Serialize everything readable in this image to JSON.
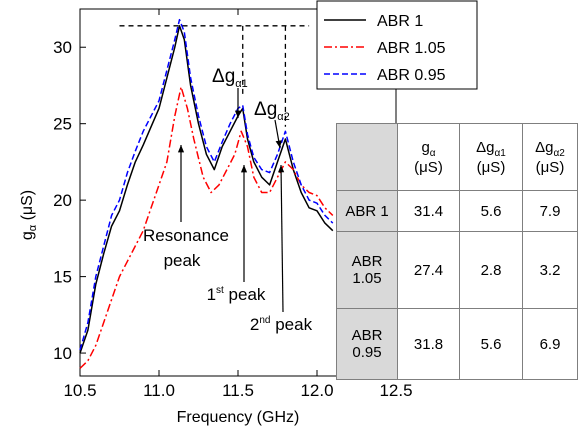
{
  "chart_data": {
    "type": "line",
    "xlabel": "Frequency (GHz)",
    "ylabel_main": "g",
    "ylabel_sub": "α",
    "ylabel_unit": " (μS)",
    "xlim": [
      10.5,
      12.5
    ],
    "ylim": [
      8.5,
      32.5
    ],
    "xticks": [
      "10.5",
      "11.0",
      "11.5",
      "12.0",
      "12.5"
    ],
    "xtick_values": [
      10.5,
      11.0,
      11.5,
      12.0,
      12.5
    ],
    "yticks": [
      "10",
      "15",
      "20",
      "25",
      "30"
    ],
    "ytick_values": [
      10,
      15,
      20,
      25,
      30
    ],
    "legend_position": "top-right",
    "series": [
      {
        "name": "ABR 1",
        "color": "#000000",
        "dash": "solid",
        "points": [
          [
            10.5,
            10.0
          ],
          [
            10.55,
            11.5
          ],
          [
            10.6,
            14.5
          ],
          [
            10.65,
            16.5
          ],
          [
            10.7,
            18.3
          ],
          [
            10.75,
            19.3
          ],
          [
            10.8,
            21.0
          ],
          [
            10.85,
            22.5
          ],
          [
            10.9,
            23.6
          ],
          [
            10.95,
            24.8
          ],
          [
            11.0,
            26.0
          ],
          [
            11.05,
            28.0
          ],
          [
            11.1,
            30.0
          ],
          [
            11.13,
            31.4
          ],
          [
            11.16,
            30.5
          ],
          [
            11.2,
            27.5
          ],
          [
            11.25,
            25.0
          ],
          [
            11.3,
            23.0
          ],
          [
            11.35,
            22.0
          ],
          [
            11.4,
            23.5
          ],
          [
            11.45,
            24.5
          ],
          [
            11.5,
            25.5
          ],
          [
            11.53,
            26.0
          ],
          [
            11.56,
            24.0
          ],
          [
            11.6,
            22.5
          ],
          [
            11.65,
            21.5
          ],
          [
            11.7,
            21.0
          ],
          [
            11.75,
            22.5
          ],
          [
            11.8,
            24.0
          ],
          [
            11.85,
            22.0
          ],
          [
            11.9,
            20.5
          ],
          [
            11.95,
            19.5
          ],
          [
            12.0,
            19.3
          ],
          [
            12.05,
            18.5
          ],
          [
            12.1,
            18.0
          ]
        ]
      },
      {
        "name": "ABR 1.05",
        "color": "#ff0000",
        "dash": "dashdot",
        "points": [
          [
            10.5,
            9.0
          ],
          [
            10.55,
            9.5
          ],
          [
            10.6,
            10.5
          ],
          [
            10.65,
            12.0
          ],
          [
            10.7,
            13.5
          ],
          [
            10.75,
            15.0
          ],
          [
            10.8,
            16.0
          ],
          [
            10.85,
            17.0
          ],
          [
            10.9,
            18.0
          ],
          [
            10.95,
            19.5
          ],
          [
            11.0,
            21.0
          ],
          [
            11.05,
            22.5
          ],
          [
            11.1,
            25.5
          ],
          [
            11.14,
            27.4
          ],
          [
            11.18,
            26.0
          ],
          [
            11.22,
            24.0
          ],
          [
            11.28,
            21.5
          ],
          [
            11.33,
            20.5
          ],
          [
            11.38,
            21.0
          ],
          [
            11.43,
            22.0
          ],
          [
            11.48,
            23.0
          ],
          [
            11.52,
            24.5
          ],
          [
            11.56,
            23.5
          ],
          [
            11.6,
            21.5
          ],
          [
            11.65,
            20.5
          ],
          [
            11.7,
            20.5
          ],
          [
            11.75,
            21.5
          ],
          [
            11.8,
            22.5
          ],
          [
            11.85,
            22.0
          ],
          [
            11.9,
            21.0
          ],
          [
            11.95,
            20.5
          ],
          [
            12.0,
            20.3
          ],
          [
            12.05,
            19.5
          ],
          [
            12.1,
            19.0
          ]
        ]
      },
      {
        "name": "ABR 0.95",
        "color": "#0000ff",
        "dash": "dash",
        "points": [
          [
            10.5,
            10.2
          ],
          [
            10.55,
            12.0
          ],
          [
            10.6,
            15.0
          ],
          [
            10.65,
            17.0
          ],
          [
            10.7,
            19.0
          ],
          [
            10.75,
            20.0
          ],
          [
            10.8,
            21.8
          ],
          [
            10.85,
            23.2
          ],
          [
            10.9,
            24.5
          ],
          [
            10.95,
            25.5
          ],
          [
            11.0,
            26.5
          ],
          [
            11.05,
            28.5
          ],
          [
            11.1,
            30.5
          ],
          [
            11.13,
            31.8
          ],
          [
            11.16,
            31.0
          ],
          [
            11.2,
            28.0
          ],
          [
            11.25,
            25.5
          ],
          [
            11.3,
            23.5
          ],
          [
            11.35,
            22.5
          ],
          [
            11.4,
            23.8
          ],
          [
            11.45,
            25.0
          ],
          [
            11.5,
            26.0
          ],
          [
            11.53,
            26.2
          ],
          [
            11.56,
            24.3
          ],
          [
            11.6,
            22.8
          ],
          [
            11.65,
            22.0
          ],
          [
            11.7,
            21.8
          ],
          [
            11.75,
            23.0
          ],
          [
            11.8,
            24.5
          ],
          [
            11.85,
            22.5
          ],
          [
            11.9,
            21.0
          ],
          [
            11.95,
            20.0
          ],
          [
            12.0,
            19.8
          ],
          [
            12.05,
            19.0
          ],
          [
            12.1,
            18.5
          ]
        ]
      }
    ],
    "annotations": {
      "resonance_line1": "Resonance",
      "resonance_line2": "peak",
      "first_peak_base": "1",
      "first_peak_sup": "st",
      "first_peak_text": " peak",
      "second_peak_base": "2",
      "second_peak_sup": "nd",
      "second_peak_text": " peak",
      "delta1_main": "Δg",
      "delta1_sub": "α1",
      "delta2_main": "Δg",
      "delta2_sub": "α2"
    },
    "reference_lines": {
      "max_level": 31.4,
      "peak1_x": 11.53,
      "peak1_level": 26.0,
      "peak2_x": 11.8,
      "peak2_level": 24.0
    }
  },
  "table": {
    "headers": [
      {
        "main": "g",
        "sub": "α",
        "unit": "(μS)"
      },
      {
        "main": "Δg",
        "sub": "α1",
        "unit": "(μS)"
      },
      {
        "main": "Δg",
        "sub": "α2",
        "unit": "(μS)"
      }
    ],
    "rows": [
      {
        "line1": "ABR 1",
        "line2": "",
        "values": [
          "31.4",
          "5.6",
          "7.9"
        ]
      },
      {
        "line1": "ABR",
        "line2": "1.05",
        "values": [
          "27.4",
          "2.8",
          "3.2"
        ]
      },
      {
        "line1": "ABR",
        "line2": "0.95",
        "values": [
          "31.8",
          "5.6",
          "6.9"
        ]
      }
    ]
  }
}
